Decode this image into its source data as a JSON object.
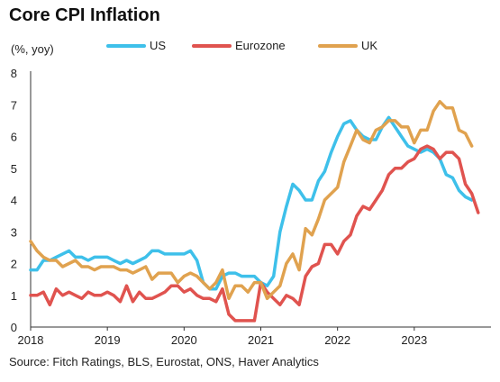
{
  "chart_data": {
    "type": "line",
    "title": "Core CPI Inflation",
    "unit_label": "(%, yoy)",
    "source": "Source: Fitch Ratings, BLS, Eurostat, ONS, Haver Analytics",
    "xlim": [
      2018.0,
      2024.0
    ],
    "ylim": [
      0,
      8
    ],
    "y_ticks": [
      "0",
      "1",
      "2",
      "3",
      "4",
      "5",
      "6",
      "7",
      "8"
    ],
    "x_ticks": [
      {
        "label": "2018",
        "value": 2018.0
      },
      {
        "label": "2019",
        "value": 2019.0
      },
      {
        "label": "2020",
        "value": 2020.0
      },
      {
        "label": "2021",
        "value": 2021.0
      },
      {
        "label": "2022",
        "value": 2022.0
      },
      {
        "label": "2023",
        "value": 2023.0
      }
    ],
    "grid": false,
    "legend_position": "top",
    "series": [
      {
        "name": "US",
        "color": "#3EC0EA",
        "points": [
          [
            2018.0,
            1.8
          ],
          [
            2018.083,
            1.8
          ],
          [
            2018.167,
            2.1
          ],
          [
            2018.25,
            2.1
          ],
          [
            2018.333,
            2.2
          ],
          [
            2018.417,
            2.3
          ],
          [
            2018.5,
            2.4
          ],
          [
            2018.583,
            2.2
          ],
          [
            2018.667,
            2.2
          ],
          [
            2018.75,
            2.1
          ],
          [
            2018.833,
            2.2
          ],
          [
            2018.917,
            2.2
          ],
          [
            2019.0,
            2.2
          ],
          [
            2019.083,
            2.1
          ],
          [
            2019.167,
            2.0
          ],
          [
            2019.25,
            2.1
          ],
          [
            2019.333,
            2.0
          ],
          [
            2019.417,
            2.1
          ],
          [
            2019.5,
            2.2
          ],
          [
            2019.583,
            2.4
          ],
          [
            2019.667,
            2.4
          ],
          [
            2019.75,
            2.3
          ],
          [
            2019.833,
            2.3
          ],
          [
            2019.917,
            2.3
          ],
          [
            2020.0,
            2.3
          ],
          [
            2020.083,
            2.4
          ],
          [
            2020.167,
            2.1
          ],
          [
            2020.25,
            1.4
          ],
          [
            2020.333,
            1.2
          ],
          [
            2020.417,
            1.2
          ],
          [
            2020.5,
            1.6
          ],
          [
            2020.583,
            1.7
          ],
          [
            2020.667,
            1.7
          ],
          [
            2020.75,
            1.6
          ],
          [
            2020.833,
            1.6
          ],
          [
            2020.917,
            1.6
          ],
          [
            2021.0,
            1.4
          ],
          [
            2021.083,
            1.3
          ],
          [
            2021.167,
            1.6
          ],
          [
            2021.25,
            3.0
          ],
          [
            2021.333,
            3.8
          ],
          [
            2021.417,
            4.5
          ],
          [
            2021.5,
            4.3
          ],
          [
            2021.583,
            4.0
          ],
          [
            2021.667,
            4.0
          ],
          [
            2021.75,
            4.6
          ],
          [
            2021.833,
            4.9
          ],
          [
            2021.917,
            5.5
          ],
          [
            2022.0,
            6.0
          ],
          [
            2022.083,
            6.4
          ],
          [
            2022.167,
            6.5
          ],
          [
            2022.25,
            6.2
          ],
          [
            2022.333,
            6.0
          ],
          [
            2022.417,
            5.9
          ],
          [
            2022.5,
            5.9
          ],
          [
            2022.583,
            6.3
          ],
          [
            2022.667,
            6.6
          ],
          [
            2022.75,
            6.3
          ],
          [
            2022.833,
            6.0
          ],
          [
            2022.917,
            5.7
          ],
          [
            2023.0,
            5.6
          ],
          [
            2023.083,
            5.5
          ],
          [
            2023.167,
            5.6
          ],
          [
            2023.25,
            5.5
          ],
          [
            2023.333,
            5.3
          ],
          [
            2023.417,
            4.8
          ],
          [
            2023.5,
            4.7
          ],
          [
            2023.583,
            4.3
          ],
          [
            2023.667,
            4.1
          ],
          [
            2023.75,
            4.0
          ]
        ]
      },
      {
        "name": "Eurozone",
        "color": "#E0534F",
        "points": [
          [
            2018.0,
            1.0
          ],
          [
            2018.083,
            1.0
          ],
          [
            2018.167,
            1.1
          ],
          [
            2018.25,
            0.7
          ],
          [
            2018.333,
            1.2
          ],
          [
            2018.417,
            1.0
          ],
          [
            2018.5,
            1.1
          ],
          [
            2018.583,
            1.0
          ],
          [
            2018.667,
            0.9
          ],
          [
            2018.75,
            1.1
          ],
          [
            2018.833,
            1.0
          ],
          [
            2018.917,
            1.0
          ],
          [
            2019.0,
            1.1
          ],
          [
            2019.083,
            1.0
          ],
          [
            2019.167,
            0.8
          ],
          [
            2019.25,
            1.3
          ],
          [
            2019.333,
            0.8
          ],
          [
            2019.417,
            1.1
          ],
          [
            2019.5,
            0.9
          ],
          [
            2019.583,
            0.9
          ],
          [
            2019.667,
            1.0
          ],
          [
            2019.75,
            1.1
          ],
          [
            2019.833,
            1.3
          ],
          [
            2019.917,
            1.3
          ],
          [
            2020.0,
            1.1
          ],
          [
            2020.083,
            1.2
          ],
          [
            2020.167,
            1.0
          ],
          [
            2020.25,
            0.9
          ],
          [
            2020.333,
            0.9
          ],
          [
            2020.417,
            0.8
          ],
          [
            2020.5,
            1.2
          ],
          [
            2020.583,
            0.4
          ],
          [
            2020.667,
            0.2
          ],
          [
            2020.75,
            0.2
          ],
          [
            2020.833,
            0.2
          ],
          [
            2020.917,
            0.2
          ],
          [
            2021.0,
            1.4
          ],
          [
            2021.083,
            1.1
          ],
          [
            2021.167,
            0.9
          ],
          [
            2021.25,
            0.7
          ],
          [
            2021.333,
            1.0
          ],
          [
            2021.417,
            0.9
          ],
          [
            2021.5,
            0.7
          ],
          [
            2021.583,
            1.6
          ],
          [
            2021.667,
            1.9
          ],
          [
            2021.75,
            2.0
          ],
          [
            2021.833,
            2.6
          ],
          [
            2021.917,
            2.6
          ],
          [
            2022.0,
            2.3
          ],
          [
            2022.083,
            2.7
          ],
          [
            2022.167,
            2.9
          ],
          [
            2022.25,
            3.5
          ],
          [
            2022.333,
            3.8
          ],
          [
            2022.417,
            3.7
          ],
          [
            2022.5,
            4.0
          ],
          [
            2022.583,
            4.3
          ],
          [
            2022.667,
            4.8
          ],
          [
            2022.75,
            5.0
          ],
          [
            2022.833,
            5.0
          ],
          [
            2022.917,
            5.2
          ],
          [
            2023.0,
            5.3
          ],
          [
            2023.083,
            5.6
          ],
          [
            2023.167,
            5.7
          ],
          [
            2023.25,
            5.6
          ],
          [
            2023.333,
            5.3
          ],
          [
            2023.417,
            5.5
          ],
          [
            2023.5,
            5.5
          ],
          [
            2023.583,
            5.3
          ],
          [
            2023.667,
            4.5
          ],
          [
            2023.75,
            4.2
          ],
          [
            2023.833,
            3.6
          ]
        ]
      },
      {
        "name": "UK",
        "color": "#E0A24F",
        "points": [
          [
            2018.0,
            2.7
          ],
          [
            2018.083,
            2.4
          ],
          [
            2018.167,
            2.2
          ],
          [
            2018.25,
            2.1
          ],
          [
            2018.333,
            2.1
          ],
          [
            2018.417,
            1.9
          ],
          [
            2018.5,
            2.0
          ],
          [
            2018.583,
            2.1
          ],
          [
            2018.667,
            1.9
          ],
          [
            2018.75,
            1.9
          ],
          [
            2018.833,
            1.8
          ],
          [
            2018.917,
            1.9
          ],
          [
            2019.0,
            1.9
          ],
          [
            2019.083,
            1.9
          ],
          [
            2019.167,
            1.8
          ],
          [
            2019.25,
            1.8
          ],
          [
            2019.333,
            1.7
          ],
          [
            2019.417,
            1.8
          ],
          [
            2019.5,
            1.9
          ],
          [
            2019.583,
            1.5
          ],
          [
            2019.667,
            1.7
          ],
          [
            2019.75,
            1.7
          ],
          [
            2019.833,
            1.7
          ],
          [
            2019.917,
            1.4
          ],
          [
            2020.0,
            1.6
          ],
          [
            2020.083,
            1.7
          ],
          [
            2020.167,
            1.6
          ],
          [
            2020.25,
            1.4
          ],
          [
            2020.333,
            1.2
          ],
          [
            2020.417,
            1.4
          ],
          [
            2020.5,
            1.8
          ],
          [
            2020.583,
            0.9
          ],
          [
            2020.667,
            1.3
          ],
          [
            2020.75,
            1.3
          ],
          [
            2020.833,
            1.1
          ],
          [
            2020.917,
            1.4
          ],
          [
            2021.0,
            1.4
          ],
          [
            2021.083,
            0.9
          ],
          [
            2021.167,
            1.1
          ],
          [
            2021.25,
            1.3
          ],
          [
            2021.333,
            2.0
          ],
          [
            2021.417,
            2.3
          ],
          [
            2021.5,
            1.8
          ],
          [
            2021.583,
            3.1
          ],
          [
            2021.667,
            2.9
          ],
          [
            2021.75,
            3.4
          ],
          [
            2021.833,
            4.0
          ],
          [
            2021.917,
            4.2
          ],
          [
            2022.0,
            4.4
          ],
          [
            2022.083,
            5.2
          ],
          [
            2022.167,
            5.7
          ],
          [
            2022.25,
            6.2
          ],
          [
            2022.333,
            5.9
          ],
          [
            2022.417,
            5.8
          ],
          [
            2022.5,
            6.2
          ],
          [
            2022.583,
            6.3
          ],
          [
            2022.667,
            6.5
          ],
          [
            2022.75,
            6.5
          ],
          [
            2022.833,
            6.3
          ],
          [
            2022.917,
            6.3
          ],
          [
            2023.0,
            5.8
          ],
          [
            2023.083,
            6.2
          ],
          [
            2023.167,
            6.2
          ],
          [
            2023.25,
            6.8
          ],
          [
            2023.333,
            7.1
          ],
          [
            2023.417,
            6.9
          ],
          [
            2023.5,
            6.9
          ],
          [
            2023.583,
            6.2
          ],
          [
            2023.667,
            6.1
          ],
          [
            2023.75,
            5.7
          ]
        ]
      }
    ]
  }
}
